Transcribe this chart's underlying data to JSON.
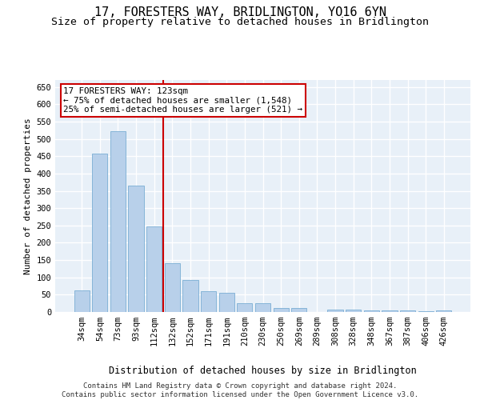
{
  "title": "17, FORESTERS WAY, BRIDLINGTON, YO16 6YN",
  "subtitle": "Size of property relative to detached houses in Bridlington",
  "xlabel": "Distribution of detached houses by size in Bridlington",
  "ylabel": "Number of detached properties",
  "categories": [
    "34sqm",
    "54sqm",
    "73sqm",
    "93sqm",
    "112sqm",
    "132sqm",
    "152sqm",
    "171sqm",
    "191sqm",
    "210sqm",
    "230sqm",
    "250sqm",
    "269sqm",
    "289sqm",
    "308sqm",
    "328sqm",
    "348sqm",
    "367sqm",
    "387sqm",
    "406sqm",
    "426sqm"
  ],
  "values": [
    62,
    457,
    523,
    365,
    248,
    140,
    92,
    59,
    55,
    25,
    25,
    11,
    12,
    0,
    7,
    6,
    5,
    4,
    4,
    3,
    4
  ],
  "bar_color": "#b8d0ea",
  "bar_edge_color": "#7aadd4",
  "background_color": "#e8f0f8",
  "grid_color": "#ffffff",
  "vline_x": 4.5,
  "vline_color": "#cc0000",
  "annotation_text": "17 FORESTERS WAY: 123sqm\n← 75% of detached houses are smaller (1,548)\n25% of semi-detached houses are larger (521) →",
  "annotation_box_color": "#cc0000",
  "ylim": [
    0,
    670
  ],
  "yticks": [
    0,
    50,
    100,
    150,
    200,
    250,
    300,
    350,
    400,
    450,
    500,
    550,
    600,
    650
  ],
  "footer": "Contains HM Land Registry data © Crown copyright and database right 2024.\nContains public sector information licensed under the Open Government Licence v3.0.",
  "title_fontsize": 11,
  "subtitle_fontsize": 9.5,
  "xlabel_fontsize": 8.5,
  "ylabel_fontsize": 8,
  "tick_fontsize": 7.5,
  "footer_fontsize": 6.5
}
